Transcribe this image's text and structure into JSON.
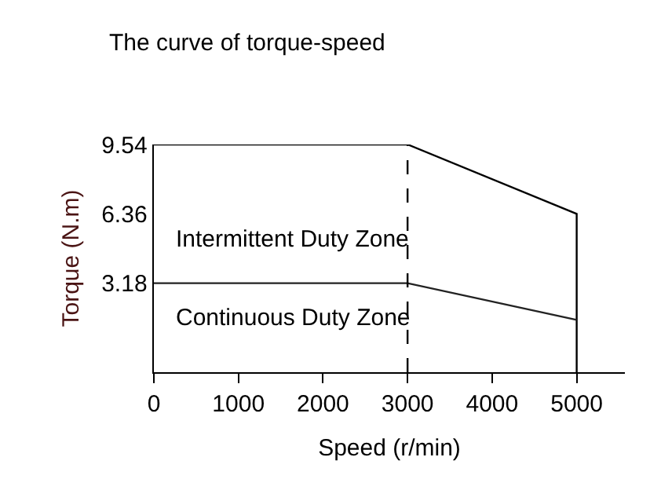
{
  "chart_data": {
    "type": "line",
    "title": "The curve of torque-speed",
    "xlabel": "Speed (r/min)",
    "ylabel": "Torque (N.m)",
    "series": [
      {
        "color": "#000000",
        "x": [
          0,
          3000,
          5000,
          5000
        ],
        "values": [
          9.54,
          9.54,
          6.36,
          -0.9
        ]
      },
      {
        "color": "#222222",
        "x": [
          0,
          3000,
          5000
        ],
        "values": [
          3.18,
          3.18,
          1.5
        ]
      }
    ],
    "xlim": [
      0,
      5570
    ],
    "xticks": [
      0,
      1000,
      2000,
      3000,
      4000,
      5000
    ],
    "ylim": [
      -0.9,
      9.54
    ],
    "yticks": [
      3.18,
      6.36,
      9.54
    ],
    "ref_lines": [
      {
        "axis": "x",
        "value": 3000,
        "line_style": "dashed",
        "color": "#000000"
      }
    ],
    "annotations": [
      "Intermittent Duty Zone",
      "Continuous Duty Zone"
    ],
    "grid": false,
    "marker": "none",
    "line_style": "solid"
  }
}
